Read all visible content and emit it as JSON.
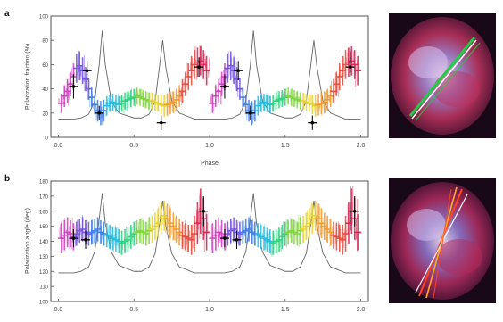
{
  "panels": [
    {
      "letter": "a",
      "chart_data": {
        "type": "scatter",
        "xlabel": "Phase",
        "ylabel": "Polarization fraction (%)",
        "xlim": [
          -0.05,
          2.05
        ],
        "ylim": [
          0,
          100
        ],
        "xticks": [
          "0.0",
          "0.5",
          "1.0",
          "1.5",
          "2.0"
        ],
        "yticks": [
          "0",
          "20",
          "40",
          "60",
          "80",
          "100"
        ],
        "grid": false,
        "legend": "none",
        "colormap": [
          "#d03cc0",
          "#6f4fe0",
          "#3a7be8",
          "#22bde0",
          "#2ccf7c",
          "#7fd63a",
          "#e8d12e",
          "#f59a2a",
          "#e8483a",
          "#d81f4f"
        ],
        "series": [
          {
            "marker": "cross",
            "x": [
              0.02,
              0.04,
              0.06,
              0.08,
              0.1,
              0.12,
              0.14,
              0.16,
              0.18,
              0.2,
              0.22,
              0.24,
              0.26,
              0.28,
              0.3,
              0.32,
              0.34,
              0.36,
              0.38,
              0.4,
              0.42,
              0.44,
              0.46,
              0.48,
              0.5,
              0.52,
              0.54,
              0.56,
              0.58,
              0.6,
              0.62,
              0.64,
              0.66,
              0.68,
              0.7,
              0.72,
              0.74,
              0.76,
              0.78,
              0.8,
              0.82,
              0.84,
              0.86,
              0.88,
              0.9,
              0.92,
              0.94,
              0.96,
              0.98
            ],
            "y": [
              28,
              34,
              38,
              44,
              50,
              57,
              59,
              55,
              48,
              40,
              33,
              27,
              22,
              20,
              22,
              26,
              28,
              29,
              28,
              27,
              28,
              30,
              31,
              32,
              33,
              34,
              33,
              32,
              31,
              30,
              30,
              29,
              28,
              27,
              26,
              27,
              28,
              29,
              31,
              34,
              38,
              44,
              50,
              55,
              60,
              62,
              63,
              60,
              55
            ],
            "err": [
              8,
              9,
              10,
              10,
              11,
              12,
              12,
              11,
              10,
              9,
              8,
              8,
              9,
              10,
              9,
              8,
              7,
              7,
              7,
              7,
              7,
              7,
              7,
              7,
              7,
              7,
              7,
              7,
              7,
              7,
              7,
              7,
              7,
              8,
              9,
              9,
              9,
              9,
              9,
              9,
              10,
              10,
              11,
              12,
              12,
              12,
              12,
              12,
              12
            ]
          },
          {
            "marker": "black-dot",
            "x": [
              0.1,
              0.19,
              0.27,
              0.68,
              0.93
            ],
            "y": [
              42,
              55,
              20,
              12,
              58
            ],
            "err": [
              10,
              8,
              6,
              6,
              8
            ]
          }
        ],
        "reference_curve": {
          "color": "#666666",
          "x": [
            0.0,
            0.05,
            0.1,
            0.15,
            0.2,
            0.24,
            0.27,
            0.29,
            0.31,
            0.35,
            0.4,
            0.5,
            0.55,
            0.6,
            0.64,
            0.67,
            0.69,
            0.71,
            0.75,
            0.8,
            0.9,
            1.0
          ],
          "y": [
            15,
            15,
            15,
            16,
            19,
            30,
            60,
            88,
            60,
            30,
            20,
            16,
            16,
            19,
            30,
            60,
            80,
            58,
            30,
            20,
            15,
            15
          ]
        }
      }
    },
    {
      "letter": "b",
      "chart_data": {
        "type": "scatter",
        "xlabel": "",
        "ylabel": "Polarization angle (deg)",
        "xlim": [
          -0.05,
          2.05
        ],
        "ylim": [
          100,
          180
        ],
        "xticks": [
          "0.0",
          "0.5",
          "1.0",
          "1.5",
          "2.0"
        ],
        "yticks": [
          "100",
          "110",
          "120",
          "130",
          "140",
          "150",
          "160",
          "170",
          "180"
        ],
        "grid": false,
        "legend": "none",
        "colormap": [
          "#d03cc0",
          "#6f4fe0",
          "#3a7be8",
          "#22bde0",
          "#2ccf7c",
          "#7fd63a",
          "#e8d12e",
          "#f59a2a",
          "#e8483a",
          "#d81f4f"
        ],
        "series": [
          {
            "marker": "cross",
            "x": [
              0.02,
              0.04,
              0.06,
              0.08,
              0.1,
              0.12,
              0.14,
              0.16,
              0.18,
              0.2,
              0.22,
              0.24,
              0.26,
              0.28,
              0.3,
              0.32,
              0.34,
              0.36,
              0.38,
              0.4,
              0.42,
              0.44,
              0.46,
              0.48,
              0.5,
              0.52,
              0.54,
              0.56,
              0.58,
              0.6,
              0.62,
              0.64,
              0.66,
              0.68,
              0.7,
              0.72,
              0.74,
              0.76,
              0.78,
              0.8,
              0.82,
              0.84,
              0.86,
              0.88,
              0.9,
              0.92,
              0.94,
              0.96,
              0.98
            ],
            "y": [
              142,
              144,
              146,
              145,
              143,
              145,
              147,
              148,
              146,
              145,
              146,
              147,
              148,
              146,
              145,
              144,
              143,
              142,
              141,
              140,
              139,
              140,
              141,
              143,
              145,
              146,
              147,
              146,
              145,
              147,
              148,
              150,
              152,
              155,
              157,
              155,
              152,
              150,
              148,
              146,
              144,
              143,
              142,
              141,
              145,
              152,
              160,
              155,
              146
            ],
            "err": [
              10,
              10,
              10,
              9,
              9,
              8,
              8,
              8,
              8,
              8,
              8,
              8,
              8,
              8,
              8,
              8,
              8,
              8,
              8,
              8,
              8,
              8,
              8,
              8,
              8,
              8,
              8,
              8,
              8,
              9,
              9,
              9,
              10,
              10,
              10,
              10,
              10,
              9,
              9,
              9,
              9,
              9,
              9,
              10,
              12,
              14,
              15,
              14,
              12
            ]
          },
          {
            "marker": "black-dot",
            "x": [
              0.1,
              0.18,
              0.96
            ],
            "y": [
              142,
              141,
              160
            ],
            "err": [
              6,
              6,
              10
            ]
          }
        ],
        "reference_curve": {
          "color": "#666666",
          "x": [
            0.0,
            0.05,
            0.1,
            0.15,
            0.2,
            0.24,
            0.27,
            0.29,
            0.31,
            0.35,
            0.4,
            0.5,
            0.55,
            0.6,
            0.64,
            0.67,
            0.69,
            0.71,
            0.75,
            0.8,
            0.9,
            1.0
          ],
          "y": [
            119,
            119,
            119,
            120,
            123,
            133,
            155,
            172,
            152,
            133,
            124,
            120,
            120,
            123,
            132,
            152,
            167,
            150,
            132,
            123,
            119,
            119
          ]
        }
      }
    }
  ],
  "images": [
    {
      "name": "nebula-image-top",
      "line_colors": [
        "#22cc44",
        "#ffffff"
      ]
    },
    {
      "name": "nebula-image-bottom",
      "line_colors": [
        "#ff4422",
        "#ffaa22",
        "#ffffff"
      ]
    }
  ]
}
